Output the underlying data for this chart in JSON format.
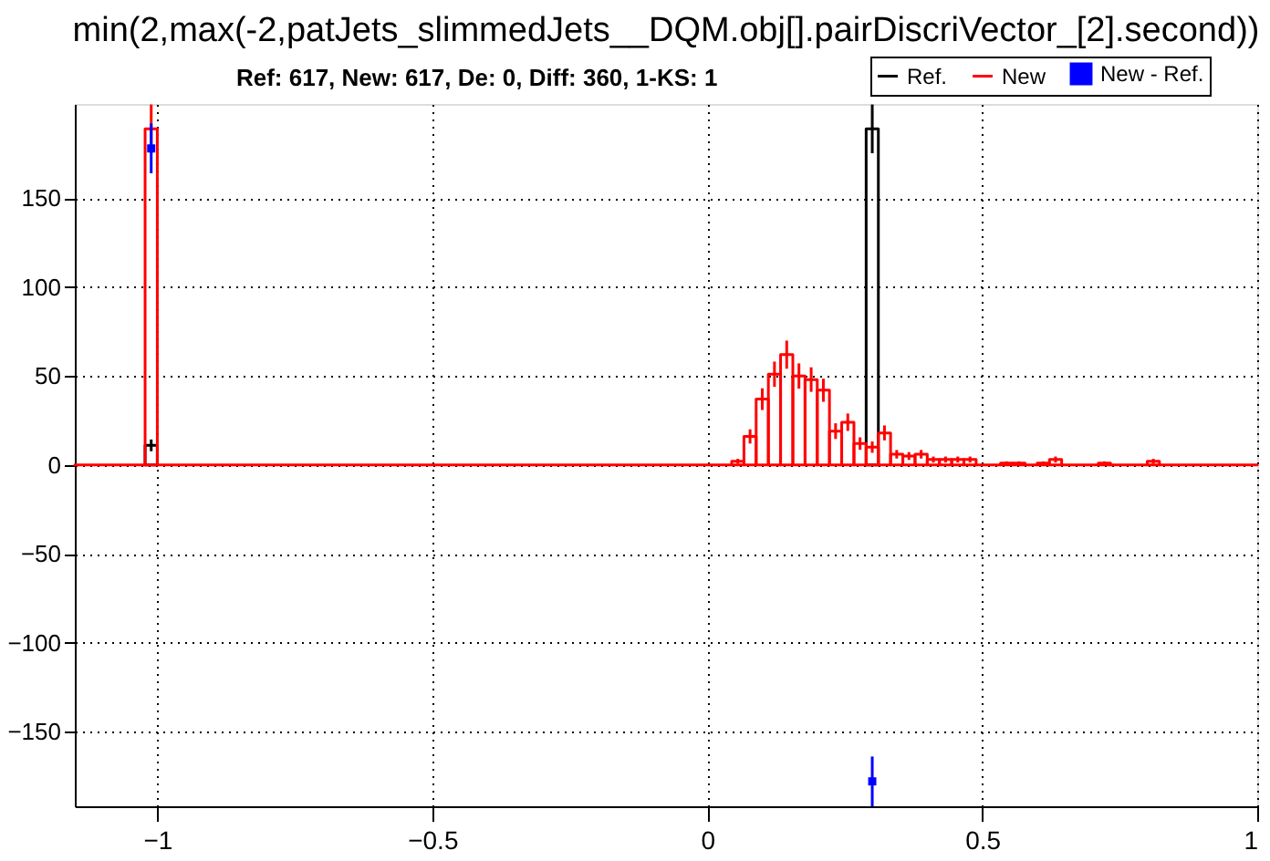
{
  "chart_data": {
    "type": "histogram",
    "title": "min(2,max(-2,patJets_slimmedJets__DQM.obj[].pairDiscriVector_[2].second))",
    "subtitle": "Ref: 617, New: 617, De: 0, Diff: 360, 1-KS: 1",
    "bins": [
      -1.15,
      -1.0222,
      -1.0,
      0.0444,
      0.0667,
      0.0889,
      0.1111,
      0.1333,
      0.1556,
      0.1778,
      0.2,
      0.2222,
      0.2444,
      0.2667,
      0.2889,
      0.3111,
      0.3333,
      0.3556,
      0.3778,
      0.4,
      0.4222,
      0.4444,
      0.4667,
      0.4889,
      0.5333,
      0.5556,
      0.5778,
      0.6,
      0.6222,
      0.6444,
      0.7111,
      0.7333,
      0.8,
      0.8222,
      1.0
    ],
    "series": [
      {
        "name": "Ref.",
        "color": "#000000",
        "values": [
          null,
          11,
          null,
          null,
          null,
          null,
          null,
          null,
          null,
          null,
          null,
          null,
          null,
          null,
          189,
          null,
          null,
          null,
          null,
          null,
          null,
          null,
          null,
          null,
          null,
          null,
          null,
          null,
          null,
          null,
          null,
          null,
          null,
          null
        ],
        "errors": [
          null,
          3.3,
          null,
          null,
          null,
          null,
          null,
          null,
          null,
          null,
          null,
          null,
          null,
          null,
          13.7,
          null,
          null,
          null,
          null,
          null,
          null,
          null,
          null,
          null,
          null,
          null,
          null,
          null,
          null,
          null,
          null,
          null,
          null,
          null
        ]
      },
      {
        "name": "New",
        "color": "#ff0000",
        "values": [
          0,
          189,
          0,
          2,
          16,
          37,
          51,
          62,
          50,
          48,
          42,
          19,
          24,
          12,
          10,
          18,
          6,
          5,
          6,
          3,
          3,
          3,
          3,
          0,
          1,
          1,
          0,
          1,
          3,
          0,
          1,
          0,
          2,
          0
        ],
        "errors": [
          null,
          13.7,
          null,
          1.4,
          4,
          6.1,
          7.1,
          7.9,
          7.1,
          6.9,
          6.5,
          4.4,
          4.9,
          3.5,
          3.2,
          4.2,
          2.4,
          2.2,
          2.4,
          1.7,
          1.7,
          1.7,
          1.7,
          null,
          1,
          1,
          null,
          1,
          1.7,
          null,
          1,
          null,
          1.4,
          null
        ]
      },
      {
        "name": "New - Ref.",
        "type": "scatter",
        "marker": "square",
        "color": "#0000ff",
        "x": [
          -1.0111,
          0.3
        ],
        "values": [
          178,
          -178
        ],
        "errors": [
          14,
          14
        ]
      }
    ],
    "xlim": [
      -1.15,
      1
    ],
    "xticks": [
      -1,
      -0.5,
      0,
      0.5,
      1
    ],
    "ylim": [
      -192,
      203
    ],
    "yticks": [
      -150,
      -100,
      -50,
      0,
      50,
      100,
      150
    ],
    "grid": true,
    "legend": "top right"
  }
}
